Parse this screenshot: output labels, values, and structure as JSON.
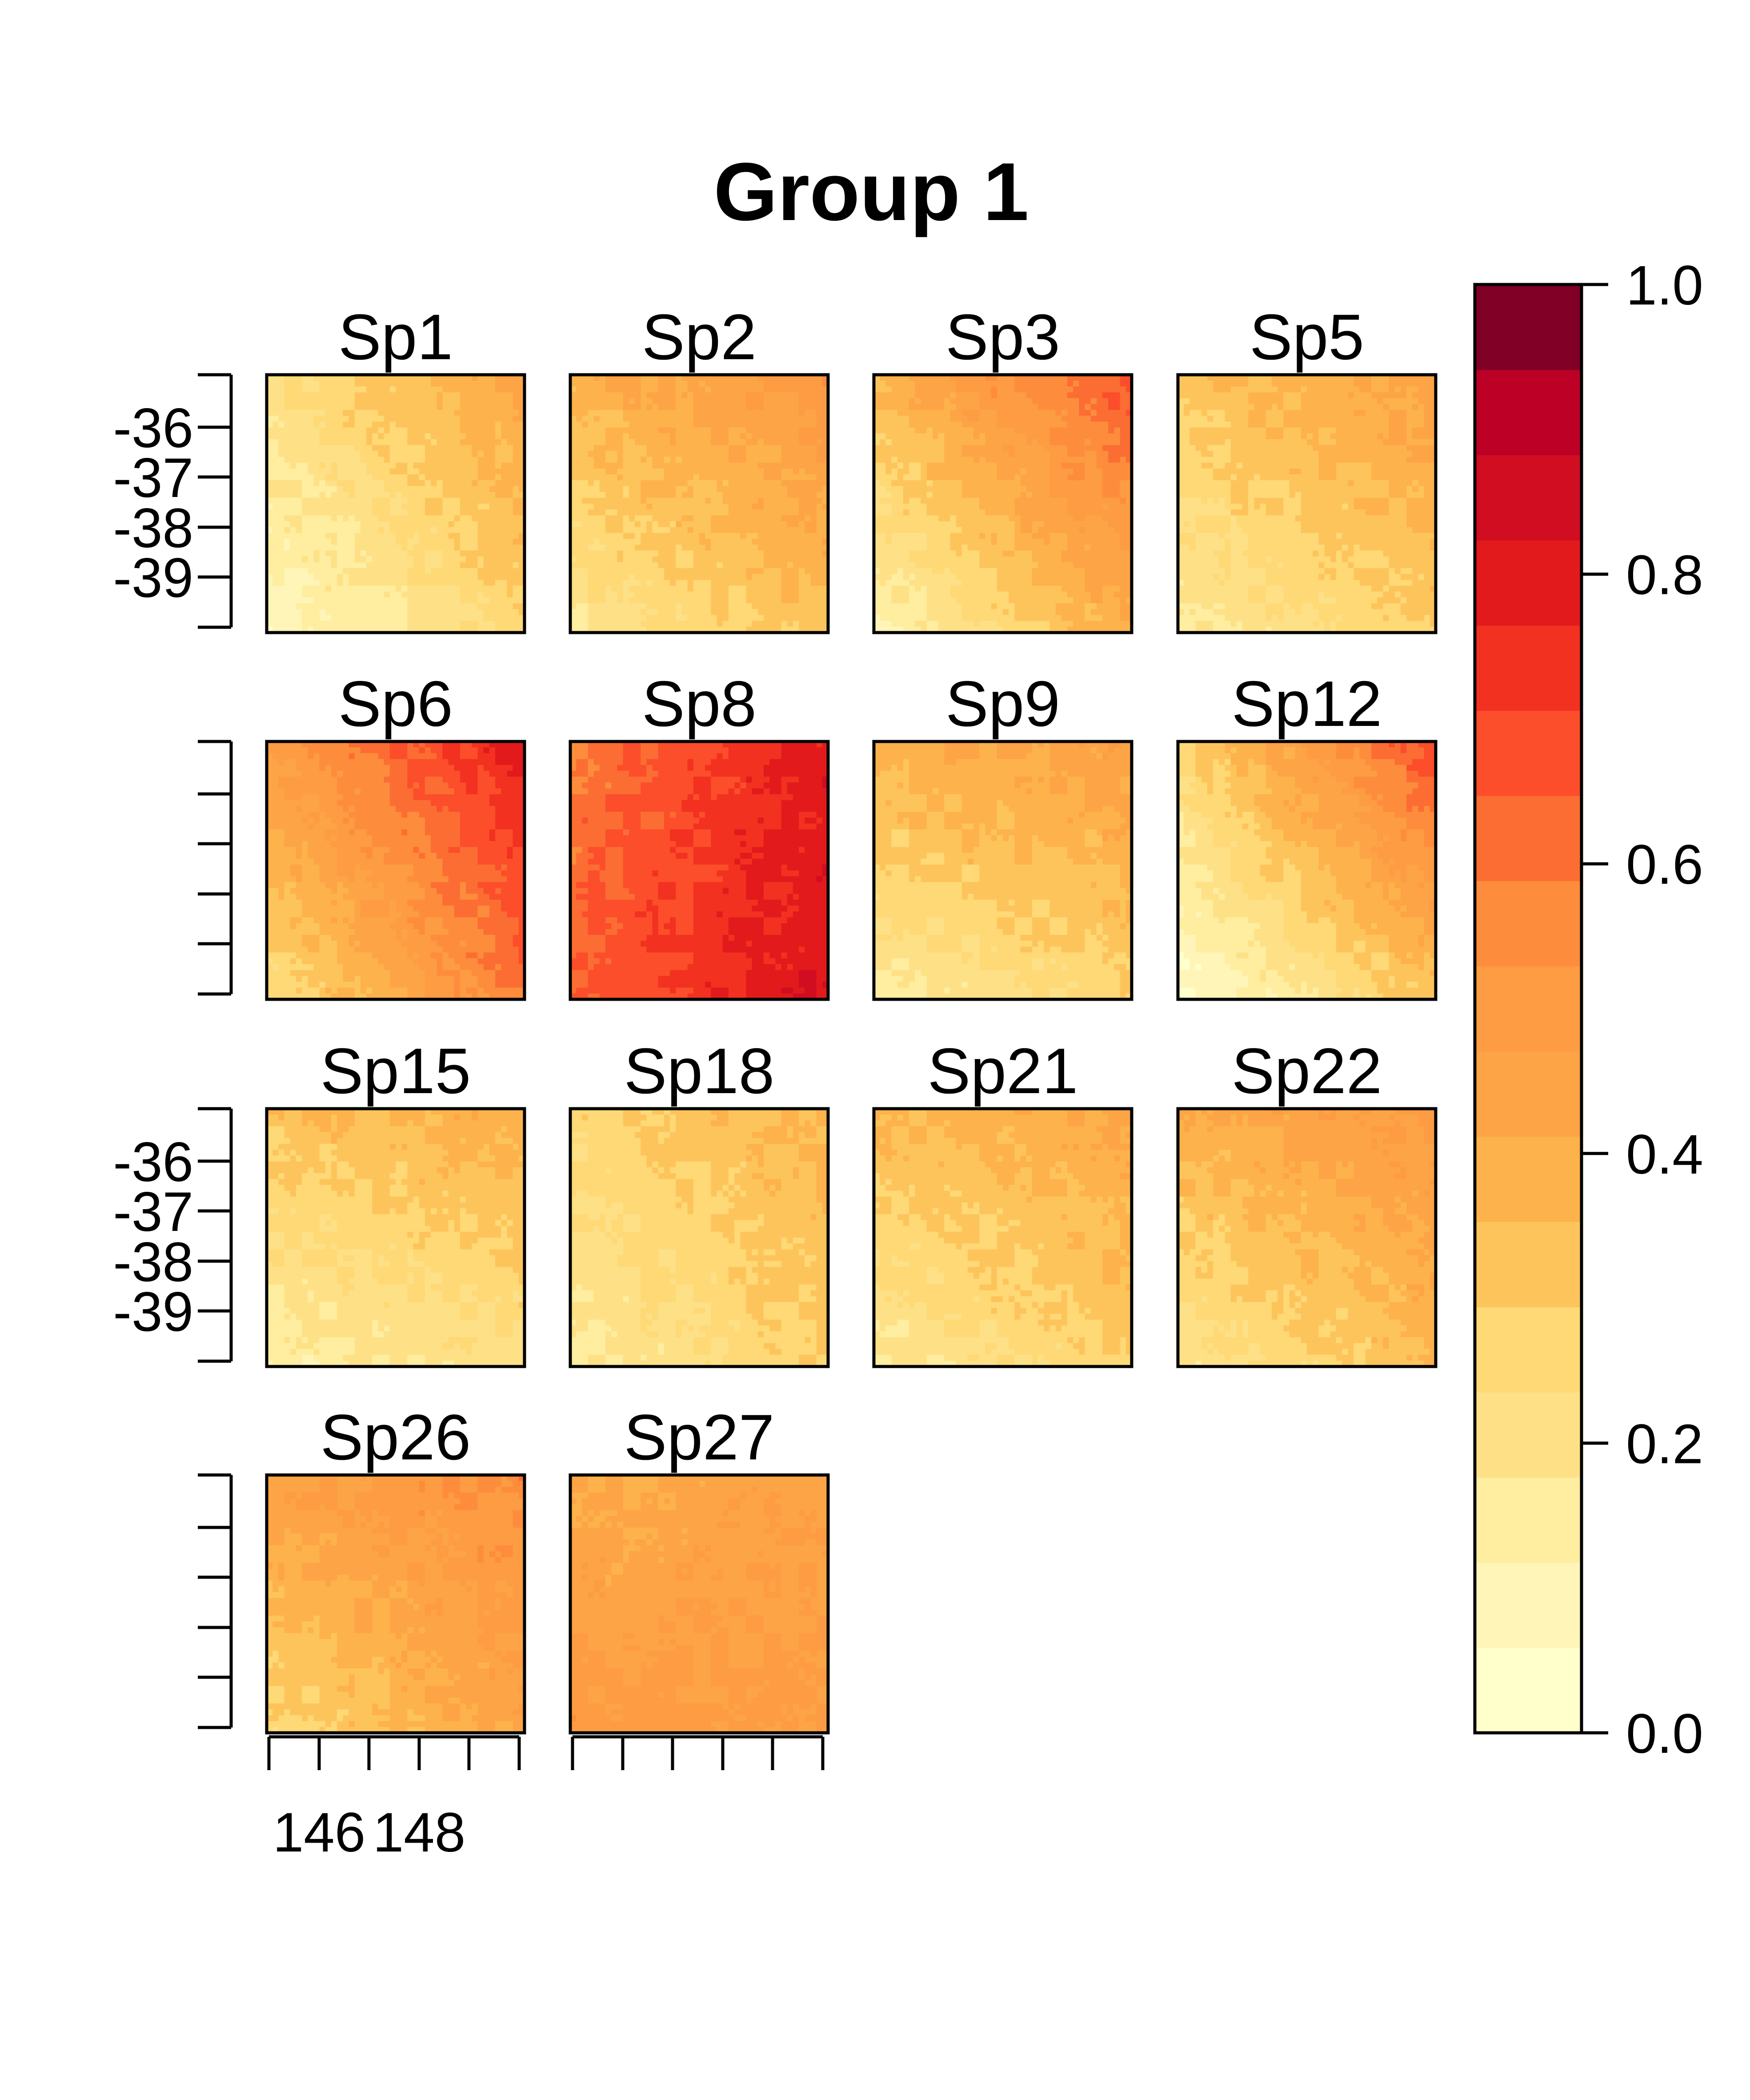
{
  "chart_data": {
    "type": "heatmap",
    "title": "Group 1",
    "xlabel": "",
    "ylabel": "",
    "x_tick_labels": [
      "146",
      "148"
    ],
    "y_tick_labels": [
      "-36",
      "-37",
      "-38",
      "-39"
    ],
    "colorbar": {
      "min": 0.0,
      "max": 1.0,
      "tick_labels": [
        "0.0",
        "0.2",
        "0.4",
        "0.6",
        "0.8",
        "1.0"
      ],
      "ticks": [
        0.0,
        0.2,
        0.4,
        0.6,
        0.8,
        1.0
      ],
      "levels": 17,
      "colors": [
        "#FFFFCC",
        "#FFF5B8",
        "#FFEDA0",
        "#FEE087",
        "#FED976",
        "#FEC45C",
        "#FEB24C",
        "#FDA446",
        "#FD9C42",
        "#FD8D3C",
        "#FC6D33",
        "#FC4E2A",
        "#F23120",
        "#E31A1C",
        "#D00D21",
        "#BD0026",
        "#800026"
      ]
    },
    "panels": [
      {
        "name": "Sp1",
        "corners": {
          "nw": 0.23,
          "ne": 0.43,
          "sw": 0.06,
          "se": 0.28
        }
      },
      {
        "name": "Sp2",
        "corners": {
          "nw": 0.38,
          "ne": 0.52,
          "sw": 0.18,
          "se": 0.33
        }
      },
      {
        "name": "Sp3",
        "corners": {
          "nw": 0.37,
          "ne": 0.68,
          "sw": 0.1,
          "se": 0.4
        }
      },
      {
        "name": "Sp5",
        "corners": {
          "nw": 0.33,
          "ne": 0.45,
          "sw": 0.15,
          "se": 0.3
        }
      },
      {
        "name": "Sp6",
        "corners": {
          "nw": 0.48,
          "ne": 0.8,
          "sw": 0.22,
          "se": 0.6
        }
      },
      {
        "name": "Sp8",
        "corners": {
          "nw": 0.58,
          "ne": 0.8,
          "sw": 0.65,
          "se": 0.82
        }
      },
      {
        "name": "Sp9",
        "corners": {
          "nw": 0.4,
          "ne": 0.45,
          "sw": 0.15,
          "se": 0.28
        }
      },
      {
        "name": "Sp12",
        "corners": {
          "nw": 0.26,
          "ne": 0.7,
          "sw": 0.04,
          "se": 0.32
        }
      },
      {
        "name": "Sp15",
        "corners": {
          "nw": 0.33,
          "ne": 0.4,
          "sw": 0.12,
          "se": 0.22
        }
      },
      {
        "name": "Sp18",
        "corners": {
          "nw": 0.27,
          "ne": 0.38,
          "sw": 0.15,
          "se": 0.3
        }
      },
      {
        "name": "Sp21",
        "corners": {
          "nw": 0.36,
          "ne": 0.43,
          "sw": 0.15,
          "se": 0.3
        }
      },
      {
        "name": "Sp22",
        "corners": {
          "nw": 0.4,
          "ne": 0.5,
          "sw": 0.17,
          "se": 0.35
        }
      },
      {
        "name": "Sp26",
        "corners": {
          "nw": 0.46,
          "ne": 0.56,
          "sw": 0.25,
          "se": 0.44
        }
      },
      {
        "name": "Sp27",
        "corners": {
          "nw": 0.4,
          "ne": 0.46,
          "sw": 0.5,
          "se": 0.48
        }
      }
    ]
  }
}
